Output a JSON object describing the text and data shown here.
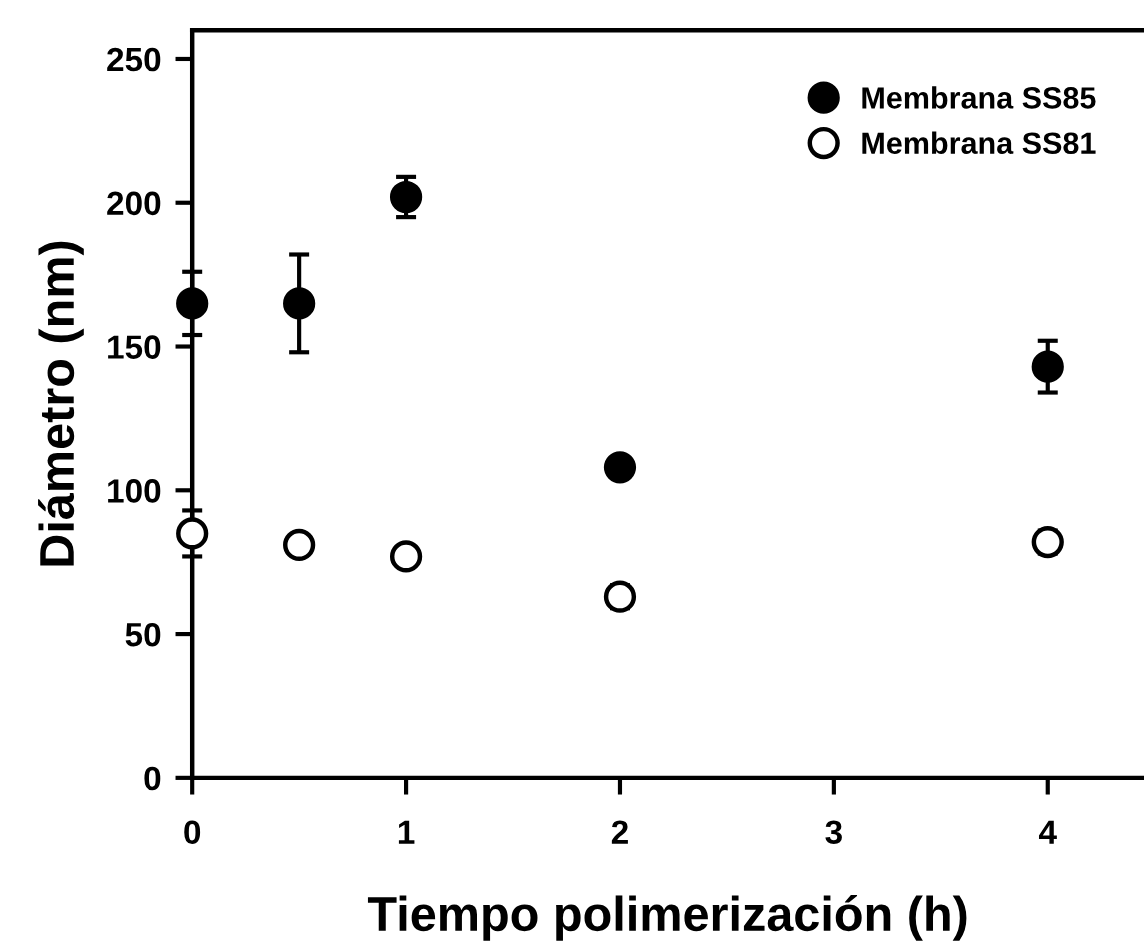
{
  "chart_data": {
    "type": "scatter",
    "xlabel": "Tiempo polimerización (h)",
    "ylabel": "Diámetro (nm)",
    "x": [
      0,
      0.5,
      1,
      2,
      4
    ],
    "series": [
      {
        "name": "Membrana SS85",
        "color": "#000000",
        "values": [
          165,
          165,
          202,
          108,
          143
        ],
        "errors": [
          11,
          17,
          7,
          null,
          9
        ]
      },
      {
        "name": "Membrana SS81",
        "color": "#ffffff",
        "values": [
          85,
          81,
          77,
          63,
          82
        ],
        "errors": [
          8,
          null,
          null,
          4,
          4
        ]
      }
    ],
    "xlim": [
      0,
      4.45
    ],
    "ylim": [
      0,
      260
    ],
    "xticks": [
      0,
      1,
      2,
      3,
      4
    ],
    "yticks": [
      0,
      50,
      100,
      150,
      200,
      250
    ],
    "grid": false,
    "legend": "top right",
    "marker": "circle"
  }
}
